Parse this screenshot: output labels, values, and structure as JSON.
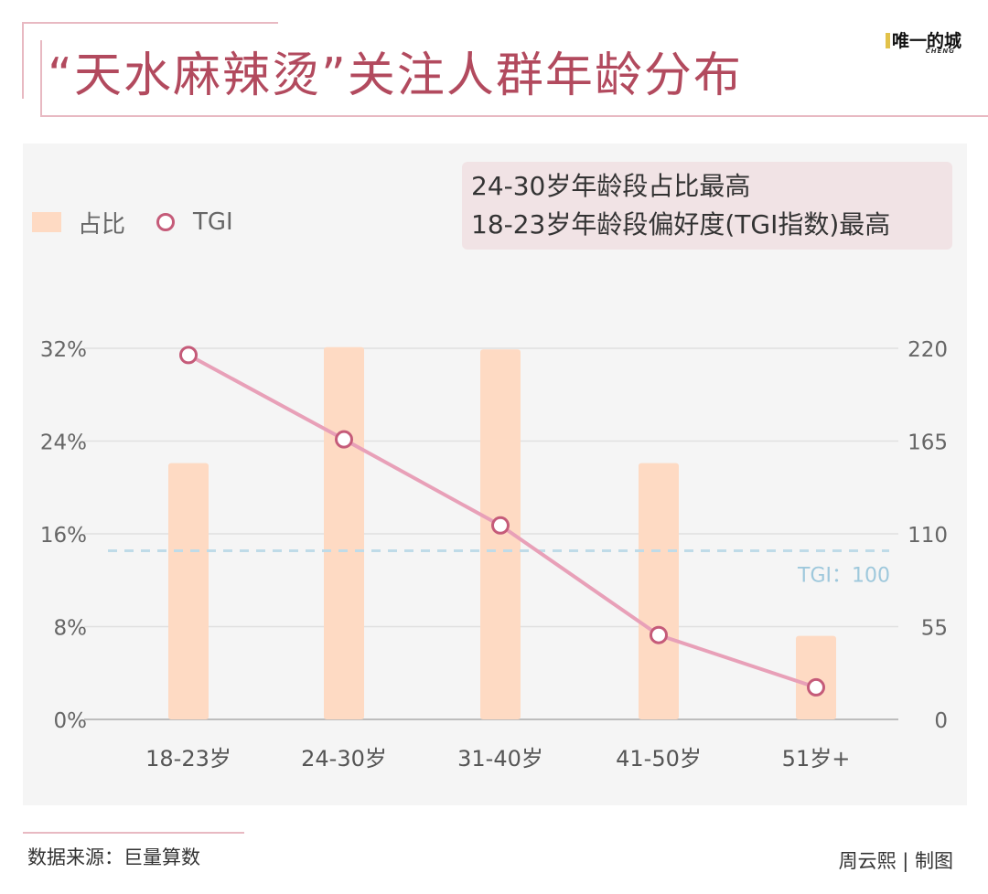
{
  "title": "“天水麻辣烫”关注人群年龄分布",
  "logo": {
    "main": "唯一的城",
    "sub": "CHENG"
  },
  "legend": {
    "bar_label": "占比",
    "line_label": "TGI"
  },
  "note": {
    "line1": "24-30岁年龄段占比最高",
    "line2": "18-23岁年龄段偏好度(TGI指数)最高"
  },
  "source": "数据来源：巨量算数",
  "credit": "周云熙 | 制图",
  "colors": {
    "bar": "#fedac3",
    "line": "#e8a0b8",
    "marker": "#c55b79",
    "reference": "#bfdbe8",
    "title": "#b24a5e"
  },
  "chart_data": {
    "type": "bar+line",
    "categories": [
      "18-23岁",
      "24-30岁",
      "31-40岁",
      "41-50岁",
      "51岁+"
    ],
    "series": [
      {
        "name": "占比",
        "type": "bar",
        "axis": "left",
        "values": [
          22.1,
          32.1,
          31.9,
          22.1,
          7.2
        ]
      },
      {
        "name": "TGI",
        "type": "line",
        "axis": "right",
        "values": [
          216,
          166,
          115,
          50,
          19
        ]
      }
    ],
    "y_left": {
      "ticks": [
        "0%",
        "8%",
        "16%",
        "24%",
        "32%"
      ],
      "range": [
        0,
        32
      ]
    },
    "y_right": {
      "ticks": [
        "0",
        "55",
        "110",
        "165",
        "220"
      ],
      "range": [
        0,
        220
      ]
    },
    "reference_line": {
      "value": 100,
      "axis": "right",
      "label": "TGI：100"
    }
  }
}
